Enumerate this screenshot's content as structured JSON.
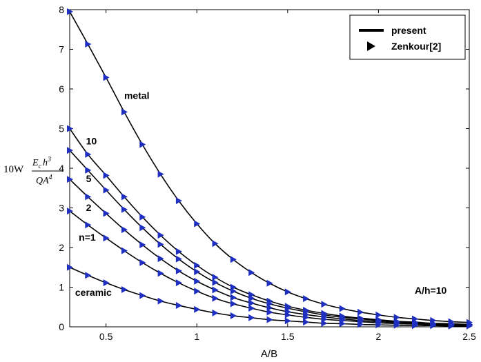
{
  "chart_data": {
    "type": "line",
    "title": "",
    "xlabel": "A/B",
    "ylabel": {
      "prefix": "10W",
      "numerator": "E",
      "numerator_sub": "c",
      "numerator_rest": "h",
      "numerator_sup": "3",
      "denominator": "QA",
      "denominator_sup": "4"
    },
    "xlim": [
      0.3,
      2.5
    ],
    "ylim": [
      0,
      8
    ],
    "xticks": [
      0.5,
      1,
      1.5,
      2,
      2.5
    ],
    "xtick_labels": [
      "0.5",
      "1",
      "1.5",
      "2",
      "2.5"
    ],
    "yticks": [
      0,
      1,
      2,
      3,
      4,
      5,
      6,
      7,
      8
    ],
    "ytick_labels": [
      "0",
      "1",
      "2",
      "3",
      "4",
      "5",
      "6",
      "7",
      "8"
    ],
    "annotation": "A/h=10",
    "legend": {
      "position": "top-right",
      "entries": [
        {
          "label": "present",
          "marker": "line"
        },
        {
          "label": "Zenkour[2]",
          "marker": "triangle-right"
        }
      ]
    },
    "x": [
      0.3,
      0.4,
      0.5,
      0.6,
      0.7,
      0.8,
      0.9,
      1.0,
      1.1,
      1.2,
      1.3,
      1.4,
      1.5,
      1.6,
      1.7,
      1.8,
      1.9,
      2.0,
      2.1,
      2.2,
      2.3,
      2.4,
      2.5
    ],
    "series": [
      {
        "name": "metal",
        "label": "metal",
        "values": [
          7.95,
          7.13,
          6.29,
          5.42,
          4.6,
          3.85,
          3.18,
          2.6,
          2.1,
          1.7,
          1.37,
          1.1,
          0.88,
          0.71,
          0.57,
          0.46,
          0.37,
          0.3,
          0.24,
          0.2,
          0.16,
          0.13,
          0.11
        ]
      },
      {
        "name": "n=10",
        "label": "10",
        "values": [
          5.0,
          4.35,
          3.82,
          3.28,
          2.77,
          2.31,
          1.9,
          1.55,
          1.25,
          1.0,
          0.81,
          0.65,
          0.52,
          0.42,
          0.34,
          0.27,
          0.22,
          0.18,
          0.14,
          0.12,
          0.09,
          0.08,
          0.06
        ]
      },
      {
        "name": "n=5",
        "label": "5",
        "values": [
          4.45,
          3.95,
          3.45,
          2.96,
          2.5,
          2.08,
          1.71,
          1.39,
          1.12,
          0.9,
          0.72,
          0.58,
          0.47,
          0.38,
          0.3,
          0.24,
          0.2,
          0.16,
          0.13,
          0.1,
          0.08,
          0.07,
          0.06
        ]
      },
      {
        "name": "n=2",
        "label": "2",
        "values": [
          3.72,
          3.28,
          2.86,
          2.45,
          2.07,
          1.72,
          1.41,
          1.15,
          0.93,
          0.74,
          0.6,
          0.48,
          0.38,
          0.31,
          0.25,
          0.2,
          0.16,
          0.13,
          0.11,
          0.09,
          0.07,
          0.06,
          0.05
        ]
      },
      {
        "name": "n=1",
        "label": "n=1",
        "values": [
          2.92,
          2.57,
          2.24,
          1.92,
          1.62,
          1.35,
          1.11,
          0.9,
          0.72,
          0.58,
          0.47,
          0.37,
          0.3,
          0.24,
          0.19,
          0.16,
          0.13,
          0.1,
          0.08,
          0.07,
          0.05,
          0.04,
          0.04
        ]
      },
      {
        "name": "ceramic",
        "label": "ceramic",
        "values": [
          1.5,
          1.3,
          1.11,
          0.94,
          0.79,
          0.65,
          0.54,
          0.44,
          0.35,
          0.28,
          0.23,
          0.18,
          0.15,
          0.12,
          0.09,
          0.08,
          0.06,
          0.05,
          0.04,
          0.03,
          0.03,
          0.02,
          0.02
        ]
      }
    ],
    "marker_color": "#1f2fbf",
    "line_color": "#000000"
  }
}
